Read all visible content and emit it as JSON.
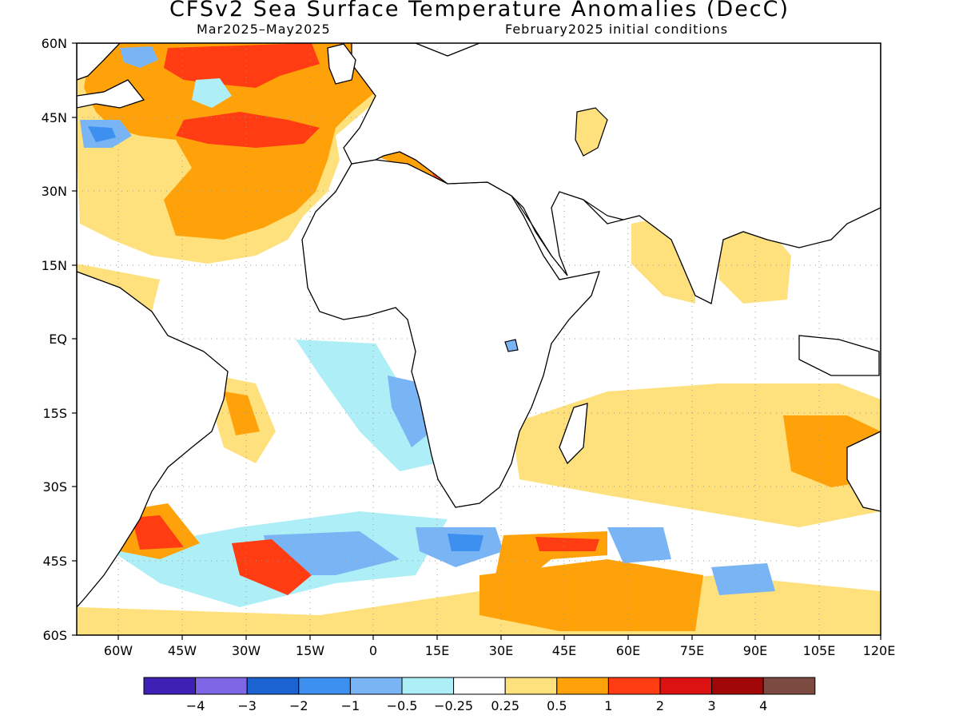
{
  "title": "CFSv2 Sea Surface Temperature Anomalies (DecC)",
  "subtitle_left": "Mar2025–May2025",
  "subtitle_right": "February2025 initial conditions",
  "map": {
    "lon_range": [
      -70,
      120
    ],
    "lat_range": [
      -60,
      60
    ],
    "grid": true,
    "x_ticks": [
      "60W",
      "45W",
      "30W",
      "15W",
      "0",
      "15E",
      "30E",
      "45E",
      "60E",
      "75E",
      "90E",
      "105E",
      "120E"
    ],
    "y_ticks": [
      "60N",
      "45N",
      "30N",
      "15N",
      "EQ",
      "15S",
      "30S",
      "45S",
      "60S"
    ]
  },
  "colorbar": {
    "colors": [
      "#3f20b4",
      "#7e67e6",
      "#1b63d0",
      "#3d8ff0",
      "#79b5f5",
      "#aeeef6",
      "#ffffff",
      "#fee17c",
      "#ffa20a",
      "#ff3c12",
      "#dc1111",
      "#a10707",
      "#7c4a40"
    ],
    "labels": [
      "−4",
      "−3",
      "−2",
      "−1",
      "−0.5",
      "−0.25",
      "0.25",
      "0.5",
      "1",
      "2",
      "3",
      "4"
    ]
  },
  "palette": {
    "land_outline": "#000000",
    "grid": "#9a9a9a"
  }
}
